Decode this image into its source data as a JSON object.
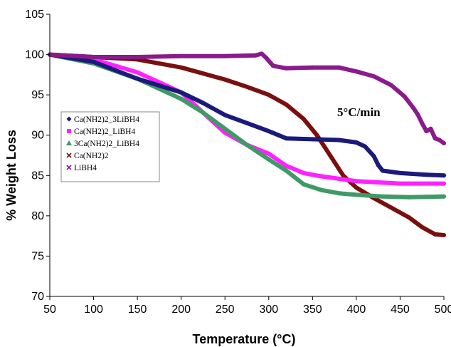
{
  "chart_data": {
    "type": "scatter",
    "title": "",
    "xlabel": "Temperature (°C)",
    "ylabel": "% Weight Loss",
    "xlim": [
      50,
      500
    ],
    "ylim": [
      70,
      105
    ],
    "x_ticks": [
      "50",
      "100",
      "150",
      "200",
      "250",
      "300",
      "350",
      "400",
      "450",
      "500"
    ],
    "y_ticks": [
      "70",
      "75",
      "80",
      "85",
      "90",
      "95",
      "100",
      "105"
    ],
    "grid": false,
    "legend_position": "left",
    "annotation": "5°C/min",
    "series": [
      {
        "name": "Ca(NH2)2_3LiBH4",
        "color": "#1a1a7a",
        "marker": "diamond",
        "points": [
          [
            50,
            100.0
          ],
          [
            100,
            99.1
          ],
          [
            150,
            97.0
          ],
          [
            200,
            95.3
          ],
          [
            225,
            94.0
          ],
          [
            250,
            92.5
          ],
          [
            275,
            91.5
          ],
          [
            300,
            90.5
          ],
          [
            320,
            89.6
          ],
          [
            350,
            89.5
          ],
          [
            380,
            89.4
          ],
          [
            400,
            89.1
          ],
          [
            410,
            88.6
          ],
          [
            420,
            87.4
          ],
          [
            425,
            86.3
          ],
          [
            430,
            85.6
          ],
          [
            450,
            85.3
          ],
          [
            480,
            85.1
          ],
          [
            500,
            85.0
          ]
        ]
      },
      {
        "name": "Ca(NH2)2_LiBH4",
        "color": "#ff22ff",
        "marker": "square",
        "points": [
          [
            50,
            100.0
          ],
          [
            100,
            99.4
          ],
          [
            150,
            97.8
          ],
          [
            200,
            95.3
          ],
          [
            225,
            92.8
          ],
          [
            250,
            90.3
          ],
          [
            275,
            88.8
          ],
          [
            300,
            87.7
          ],
          [
            320,
            86.2
          ],
          [
            340,
            85.3
          ],
          [
            360,
            84.9
          ],
          [
            400,
            84.3
          ],
          [
            450,
            84.0
          ],
          [
            500,
            84.0
          ]
        ]
      },
      {
        "name": "3Ca(NH2)2_LiBH4",
        "color": "#3f9a66",
        "marker": "triangle",
        "points": [
          [
            50,
            100.0
          ],
          [
            100,
            98.9
          ],
          [
            150,
            97.0
          ],
          [
            200,
            94.5
          ],
          [
            225,
            92.8
          ],
          [
            250,
            90.8
          ],
          [
            275,
            88.8
          ],
          [
            300,
            87.0
          ],
          [
            320,
            85.6
          ],
          [
            340,
            83.9
          ],
          [
            360,
            83.2
          ],
          [
            380,
            82.8
          ],
          [
            400,
            82.6
          ],
          [
            430,
            82.4
          ],
          [
            460,
            82.3
          ],
          [
            500,
            82.4
          ]
        ]
      },
      {
        "name": "Ca(NH2)2",
        "color": "#7a0f0f",
        "marker": "x",
        "points": [
          [
            50,
            100.0
          ],
          [
            100,
            99.7
          ],
          [
            150,
            99.4
          ],
          [
            200,
            98.4
          ],
          [
            250,
            96.9
          ],
          [
            275,
            96.0
          ],
          [
            300,
            95.0
          ],
          [
            320,
            93.8
          ],
          [
            340,
            92.0
          ],
          [
            355,
            90.0
          ],
          [
            370,
            87.5
          ],
          [
            385,
            85.0
          ],
          [
            400,
            83.5
          ],
          [
            420,
            82.2
          ],
          [
            440,
            81.0
          ],
          [
            460,
            79.8
          ],
          [
            475,
            78.6
          ],
          [
            490,
            77.7
          ],
          [
            500,
            77.6
          ]
        ]
      },
      {
        "name": "LiBH4",
        "color": "#8b1a8b",
        "marker": "x",
        "points": [
          [
            50,
            100.0
          ],
          [
            100,
            99.7
          ],
          [
            150,
            99.7
          ],
          [
            200,
            99.8
          ],
          [
            250,
            99.8
          ],
          [
            285,
            99.9
          ],
          [
            292,
            100.1
          ],
          [
            297,
            99.6
          ],
          [
            305,
            98.6
          ],
          [
            320,
            98.3
          ],
          [
            350,
            98.4
          ],
          [
            380,
            98.4
          ],
          [
            400,
            97.9
          ],
          [
            420,
            97.3
          ],
          [
            440,
            96.2
          ],
          [
            455,
            94.8
          ],
          [
            465,
            93.4
          ],
          [
            470,
            92.6
          ],
          [
            475,
            91.5
          ],
          [
            480,
            90.5
          ],
          [
            485,
            90.8
          ],
          [
            490,
            89.6
          ],
          [
            495,
            89.4
          ],
          [
            500,
            89.0
          ]
        ]
      }
    ]
  }
}
